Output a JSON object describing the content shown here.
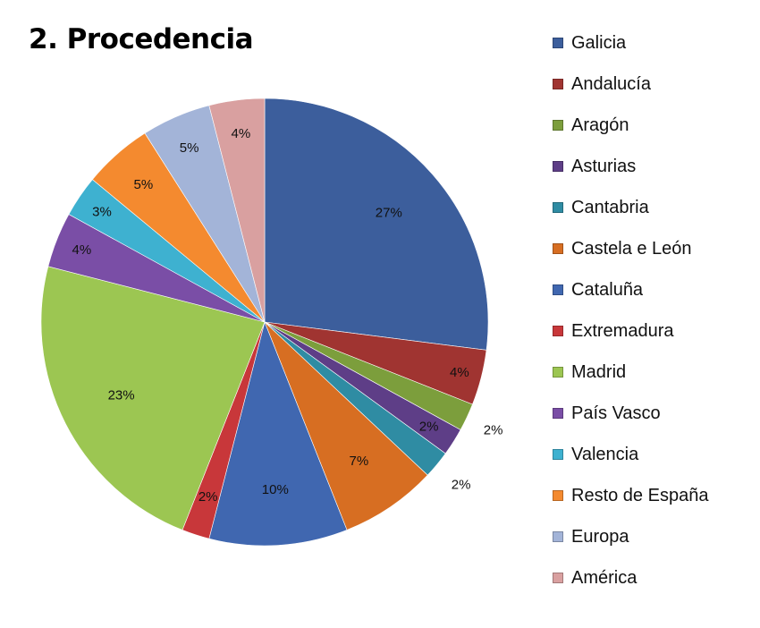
{
  "chart_data": {
    "type": "pie",
    "title": "2. Procedencia",
    "slices": [
      {
        "label": "Galicia",
        "value": 27,
        "display": "27%",
        "color": "#3c5e9c"
      },
      {
        "label": "Andalucía",
        "value": 4,
        "display": "4%",
        "color": "#a03431"
      },
      {
        "label": "Aragón",
        "value": 2,
        "display": "2%",
        "color": "#7c9e3c"
      },
      {
        "label": "Asturias",
        "value": 2,
        "display": "2%",
        "color": "#5e3e87"
      },
      {
        "label": "Cantabria",
        "value": 2,
        "display": "2%",
        "color": "#2f8ca3"
      },
      {
        "label": "Castela e León",
        "value": 7,
        "display": "7%",
        "color": "#d76e22"
      },
      {
        "label": "Cataluña",
        "value": 10,
        "display": "10%",
        "color": "#4067b0"
      },
      {
        "label": "Extremadura",
        "value": 2,
        "display": "2%",
        "color": "#c8373a"
      },
      {
        "label": "Madrid",
        "value": 23,
        "display": "23%",
        "color": "#9cc652"
      },
      {
        "label": "País Vasco",
        "value": 4,
        "display": "4%",
        "color": "#7a4ea6"
      },
      {
        "label": "Valencia",
        "value": 3,
        "display": "3%",
        "color": "#3eb1d0"
      },
      {
        "label": "Resto de España",
        "value": 5,
        "display": "5%",
        "color": "#f48a2f"
      },
      {
        "label": "Europa",
        "value": 5,
        "display": "5%",
        "color": "#a3b4d8"
      },
      {
        "label": "América",
        "value": 4,
        "display": "4%",
        "color": "#d9a0a0"
      }
    ],
    "legend_position": "right"
  }
}
